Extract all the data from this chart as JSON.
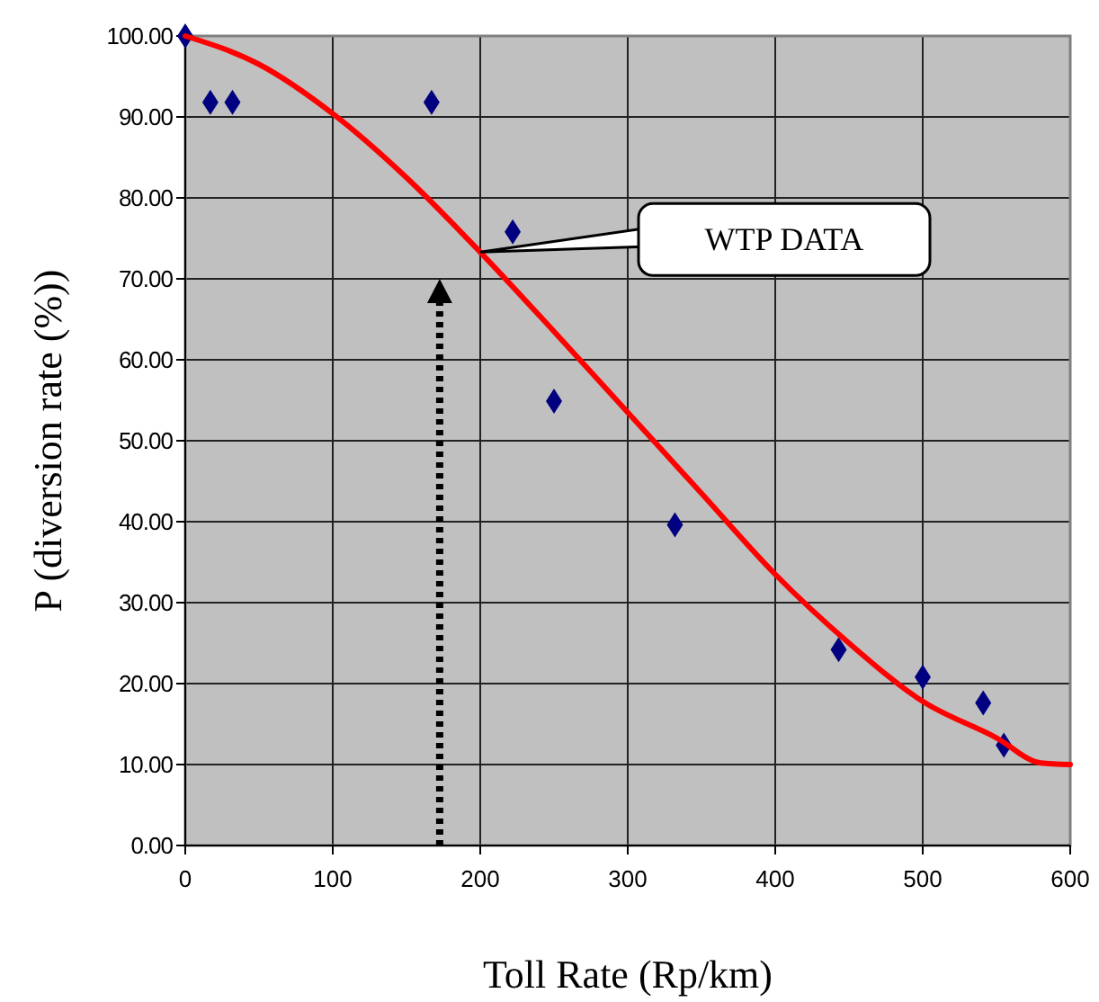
{
  "chart_data": {
    "type": "scatter",
    "xlabel": "Toll Rate (Rp/km)",
    "ylabel": "P (diversion rate (%))",
    "xlim": [
      0,
      600
    ],
    "xticks": [
      0,
      100,
      200,
      300,
      400,
      500,
      600
    ],
    "ylim": [
      0,
      100
    ],
    "yticks": [
      {
        "value": 0,
        "label": "0.00"
      },
      {
        "value": 10,
        "label": "10.00"
      },
      {
        "value": 20,
        "label": "20.00"
      },
      {
        "value": 30,
        "label": "30.00"
      },
      {
        "value": 40,
        "label": "40.00"
      },
      {
        "value": 50,
        "label": "50.00"
      },
      {
        "value": 60,
        "label": "60.00"
      },
      {
        "value": 70,
        "label": "70.00"
      },
      {
        "value": 80,
        "label": "80.00"
      },
      {
        "value": 90,
        "label": "90.00"
      },
      {
        "value": 100,
        "label": "100.00"
      }
    ],
    "grid": true,
    "series": [
      {
        "marker": "diamond",
        "color": "#000080",
        "x": [
          0,
          17,
          32,
          167,
          222,
          250,
          332,
          443,
          500,
          541,
          555
        ],
        "values": [
          100,
          91.8,
          91.8,
          91.8,
          75.8,
          54.9,
          39.6,
          24.2,
          20.8,
          17.6,
          12.4
        ]
      },
      {
        "type": "line",
        "marker": "none",
        "line_style": "solid",
        "color": "#ff0000",
        "x": [
          0,
          50,
          100,
          150,
          200,
          250,
          300,
          350,
          400,
          450,
          500,
          550,
          580,
          600
        ],
        "values": [
          100,
          96.5,
          90.4,
          82.5,
          73.3,
          63.5,
          53.5,
          43.5,
          33.5,
          25,
          17.8,
          13.3,
          10.2,
          10
        ]
      }
    ],
    "annotations": [
      "WTP DATA"
    ]
  }
}
